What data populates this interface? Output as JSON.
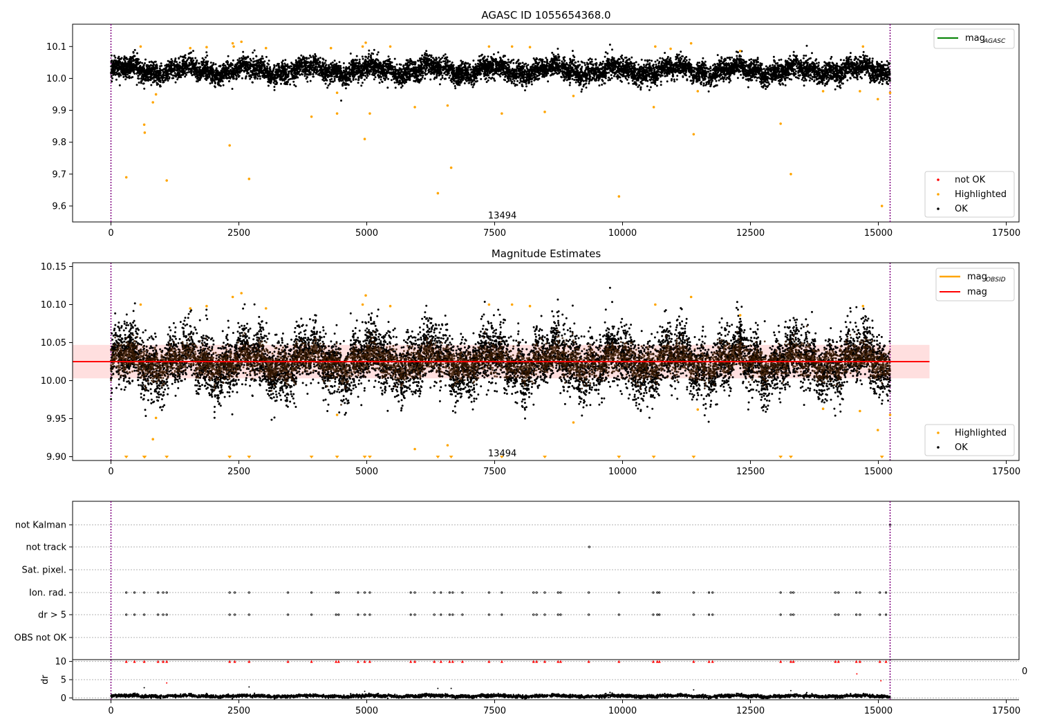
{
  "figure_title": "AGASC ID 1055654368.0",
  "colors": {
    "ok": "#000000",
    "highlighted": "#ffa500",
    "not_ok": "#ff0000",
    "mag_agasc_line": "#008000",
    "mag_line": "#ff0000",
    "mag_band": "#ffc0c0",
    "obs_boundary": "#800080",
    "grid": "#b0b0b0"
  },
  "chart_data": [
    {
      "type": "scatter",
      "title": "AGASC ID 1055654368.0",
      "xlabel": "",
      "ylabel": "",
      "xlim": [
        -750,
        17750
      ],
      "ylim": [
        9.55,
        10.17
      ],
      "xticks": [
        0,
        2500,
        5000,
        7500,
        10000,
        12500,
        15000,
        17500
      ],
      "yticks": [
        9.6,
        9.7,
        9.8,
        9.9,
        10.0,
        10.1
      ],
      "obs_boundaries": [
        0,
        15230
      ],
      "annotations": [
        {
          "text": "13494",
          "x": 7650,
          "y": 9.57
        }
      ],
      "legend_upper": {
        "position": "upper-right",
        "entries": [
          {
            "base": "mag",
            "sub": "AGASC",
            "kind": "line"
          }
        ]
      },
      "legend_lower": {
        "position": "lower-right",
        "entries": [
          "not OK",
          "Highlighted",
          "OK"
        ]
      },
      "series": [
        {
          "name": "OK",
          "band_center": 10.025,
          "band_width": 0.05,
          "x_range": [
            0,
            15230
          ]
        },
        {
          "name": "Highlighted",
          "points": [
            [
              300,
              9.69
            ],
            [
              580,
              10.1
            ],
            [
              650,
              9.855
            ],
            [
              660,
              9.83
            ],
            [
              820,
              9.925
            ],
            [
              880,
              9.95
            ],
            [
              1090,
              9.68
            ],
            [
              1550,
              10.095
            ],
            [
              1870,
              10.098
            ],
            [
              2320,
              9.79
            ],
            [
              2380,
              10.11
            ],
            [
              2400,
              10.1
            ],
            [
              2550,
              10.115
            ],
            [
              2700,
              9.685
            ],
            [
              3030,
              10.095
            ],
            [
              3920,
              9.88
            ],
            [
              4300,
              10.095
            ],
            [
              4420,
              9.89
            ],
            [
              4420,
              9.955
            ],
            [
              4920,
              10.1
            ],
            [
              4960,
              9.81
            ],
            [
              4980,
              10.112
            ],
            [
              5060,
              9.89
            ],
            [
              5460,
              10.1
            ],
            [
              5940,
              9.91
            ],
            [
              6390,
              9.64
            ],
            [
              6580,
              9.915
            ],
            [
              6650,
              9.72
            ],
            [
              7390,
              10.1
            ],
            [
              7640,
              9.89
            ],
            [
              7840,
              10.1
            ],
            [
              8190,
              10.098
            ],
            [
              8480,
              9.895
            ],
            [
              9040,
              9.945
            ],
            [
              9930,
              9.63
            ],
            [
              10610,
              9.91
            ],
            [
              10640,
              10.1
            ],
            [
              10940,
              10.093
            ],
            [
              11340,
              10.11
            ],
            [
              11390,
              9.825
            ],
            [
              11470,
              9.96
            ],
            [
              12300,
              10.086
            ],
            [
              13090,
              9.858
            ],
            [
              13290,
              9.7
            ],
            [
              13920,
              9.96
            ],
            [
              14640,
              9.96
            ],
            [
              14700,
              10.1
            ],
            [
              14990,
              9.935
            ],
            [
              15070,
              9.6
            ],
            [
              15230,
              9.955
            ]
          ]
        },
        {
          "name": "not OK",
          "points": []
        }
      ]
    },
    {
      "type": "scatter",
      "title": "Magnitude Estimates",
      "xlabel": "",
      "ylabel": "",
      "xlim": [
        -750,
        17750
      ],
      "ylim": [
        9.895,
        10.155
      ],
      "xticks": [
        0,
        2500,
        5000,
        7500,
        10000,
        12500,
        15000,
        17500
      ],
      "yticks": [
        9.9,
        9.95,
        10.0,
        10.05,
        10.1,
        10.15
      ],
      "ytick_labels": [
        "9.90",
        "9.95",
        "10.00",
        "10.05",
        "10.10",
        "10.15"
      ],
      "obs_boundaries": [
        0,
        15230
      ],
      "annotations": [
        {
          "text": "13494",
          "x": 7650,
          "y": 9.904
        }
      ],
      "mag": {
        "value": 10.025,
        "band": [
          10.003,
          10.047
        ],
        "x_range": [
          -750,
          16000
        ]
      },
      "legend_upper": {
        "position": "upper-right",
        "entries": [
          {
            "base": "mag",
            "sub": "OBSID",
            "kind": "line"
          },
          {
            "base": "mag",
            "sub": "",
            "kind": "line"
          }
        ]
      },
      "legend_lower": {
        "position": "lower-right",
        "entries": [
          "Highlighted",
          "OK"
        ]
      },
      "series": [
        {
          "name": "OK",
          "band_center": 10.025,
          "band_width": 0.06,
          "x_range": [
            0,
            15230
          ]
        },
        {
          "name": "Highlighted",
          "points": [
            [
              580,
              10.1
            ],
            [
              880,
              9.951
            ],
            [
              820,
              9.923
            ],
            [
              1550,
              10.095
            ],
            [
              1870,
              10.098
            ],
            [
              2380,
              10.11
            ],
            [
              2550,
              10.115
            ],
            [
              3030,
              10.095
            ],
            [
              4420,
              9.955
            ],
            [
              4920,
              10.1
            ],
            [
              4980,
              10.112
            ],
            [
              5460,
              10.098
            ],
            [
              5940,
              9.91
            ],
            [
              6580,
              9.915
            ],
            [
              7390,
              10.1
            ],
            [
              7840,
              10.1
            ],
            [
              8190,
              10.098
            ],
            [
              9040,
              9.945
            ],
            [
              10640,
              10.1
            ],
            [
              11340,
              10.11
            ],
            [
              11470,
              9.962
            ],
            [
              12300,
              10.086
            ],
            [
              13920,
              9.963
            ],
            [
              14640,
              9.96
            ],
            [
              14700,
              10.098
            ],
            [
              14990,
              9.935
            ],
            [
              15230,
              9.955
            ]
          ]
        },
        {
          "name": "Highlighted (below range)",
          "marker": "triangle-down",
          "x": [
            300,
            650,
            660,
            1090,
            2320,
            2700,
            3920,
            4420,
            4960,
            5060,
            6390,
            6650,
            7640,
            8480,
            9930,
            10610,
            11390,
            13090,
            13290,
            15070
          ]
        }
      ]
    },
    {
      "type": "scatter",
      "title": "",
      "xlabel": "",
      "ylabel": "",
      "xlim": [
        -750,
        17750
      ],
      "categories": [
        "not Kalman",
        "not track",
        "Sat. pixel.",
        "Ion. rad.",
        "dr > 5",
        "OBS not OK"
      ],
      "flags": {
        "not Kalman": [
          15230
        ],
        "not track": [
          9350
        ],
        "Sat. pixel.": [],
        "Ion. rad.": [
          300,
          460,
          650,
          920,
          1020,
          1090,
          2320,
          2420,
          2700,
          3460,
          3920,
          4400,
          4450,
          4830,
          4960,
          5060,
          5860,
          5940,
          6320,
          6450,
          6620,
          6680,
          6870,
          7390,
          7640,
          8260,
          8320,
          8480,
          8740,
          8790,
          9340,
          9930,
          10600,
          10680,
          10720,
          11390,
          11690,
          11760,
          13090,
          13290,
          13340,
          14160,
          14220,
          14570,
          14640,
          15030,
          15150
        ],
        "dr > 5": [
          300,
          460,
          650,
          920,
          1020,
          1090,
          2320,
          2420,
          2700,
          3460,
          3920,
          4400,
          4450,
          4830,
          4960,
          5060,
          5860,
          5940,
          6320,
          6450,
          6620,
          6680,
          6870,
          7390,
          7640,
          8260,
          8320,
          8480,
          8740,
          8790,
          9340,
          9930,
          10600,
          10680,
          10720,
          11390,
          11690,
          11760,
          13090,
          13290,
          13340,
          14160,
          14220,
          14570,
          14640,
          15030,
          15150
        ],
        "OBS not OK": []
      },
      "obs_boundaries": [
        0,
        15230
      ]
    },
    {
      "type": "scatter",
      "title": "",
      "xlabel": "",
      "ylabel": "dr",
      "xlim": [
        -750,
        17750
      ],
      "ylim": [
        -0.5,
        10.5
      ],
      "yticks": [
        0,
        5,
        10
      ],
      "xticks": [
        0,
        2500,
        5000,
        7500,
        10000,
        12500,
        15000,
        17500
      ],
      "obs_boundaries": [
        0,
        15230
      ],
      "series": [
        {
          "name": "OK",
          "band_center": 0.5,
          "band_width": 0.6,
          "x_range": [
            0,
            15230
          ]
        },
        {
          "name": "dr > 5 (clipped)",
          "marker": "triangle-up",
          "y": 10,
          "x": [
            300,
            460,
            650,
            920,
            1020,
            1090,
            2320,
            2420,
            2700,
            3460,
            3920,
            4400,
            4450,
            4830,
            4960,
            5060,
            5860,
            5940,
            6320,
            6450,
            6620,
            6680,
            6870,
            7390,
            7640,
            8260,
            8320,
            8480,
            8740,
            8790,
            9340,
            9930,
            10600,
            10680,
            10720,
            11390,
            11690,
            11760,
            13090,
            13290,
            13340,
            14160,
            14220,
            14570,
            14640,
            15030,
            15150
          ]
        },
        {
          "name": "outliers",
          "points": [
            [
              650,
              2.8
            ],
            [
              1090,
              4.1
            ],
            [
              2700,
              3.0
            ],
            [
              6390,
              2.6
            ],
            [
              6650,
              2.6
            ],
            [
              14580,
              6.6
            ],
            [
              15050,
              4.7
            ],
            [
              4960,
              1.8
            ],
            [
              11390,
              2.2
            ],
            [
              13290,
              2.0
            ]
          ]
        }
      ],
      "stray_tick_label": "0"
    }
  ]
}
